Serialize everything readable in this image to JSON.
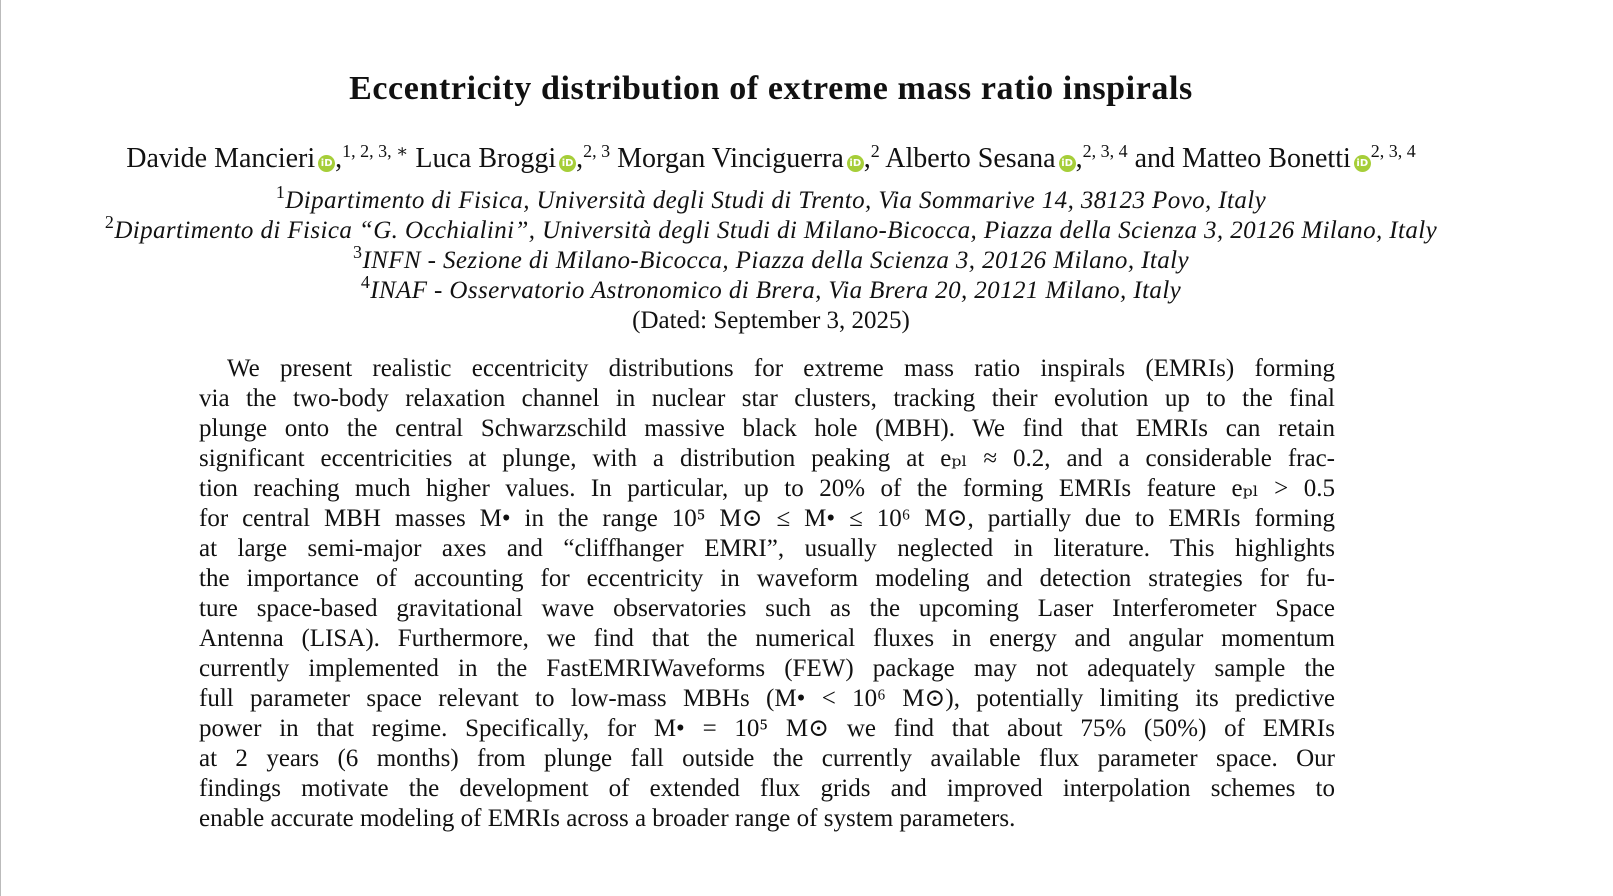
{
  "title": "Eccentricity distribution of extreme mass ratio inspirals",
  "authors": [
    {
      "name": "Davide Mancieri",
      "sep": ",",
      "affil": "1, 2, 3, ∗"
    },
    {
      "name": "Luca Broggi",
      "sep": ",",
      "affil": "2, 3"
    },
    {
      "name": "Morgan Vinciguerra",
      "sep": ",",
      "affil": "2"
    },
    {
      "name": "Alberto Sesana",
      "sep": ",",
      "affil": "2, 3, 4"
    },
    {
      "name": "Matteo Bonetti",
      "affil": "2, 3, 4"
    }
  ],
  "conjunction": "and",
  "affiliations": [
    {
      "mark": "1",
      "text": "Dipartimento di Fisica, Università degli Studi di Trento, Via Sommarive 14, 38123 Povo, Italy"
    },
    {
      "mark": "2",
      "text": "Dipartimento di Fisica “G. Occhialini”, Università degli Studi di Milano-Bicocca, Piazza della Scienza 3, 20126 Milano, Italy"
    },
    {
      "mark": "3",
      "text": "INFN - Sezione di Milano-Bicocca, Piazza della Scienza 3, 20126 Milano, Italy"
    },
    {
      "mark": "4",
      "text": "INAF - Osservatorio Astronomico di Brera, Via Brera 20, 20121 Milano, Italy"
    }
  ],
  "dated": "(Dated: September 3, 2025)",
  "abstract": [
    "We present realistic eccentricity distributions for extreme mass ratio inspirals (EMRIs) forming",
    "via the two-body relaxation channel in nuclear star clusters, tracking their evolution up to the final",
    "plunge onto the central Schwarzschild massive black hole (MBH). We find that EMRIs can retain",
    "significant eccentricities at plunge, with a distribution peaking at eₚₗ ≈ 0.2, and a considerable frac-",
    "tion reaching much higher values. In particular, up to 20% of the forming EMRIs feature eₚₗ > 0.5",
    "for central MBH masses M• in the range 10⁵ M⊙ ≤ M• ≤ 10⁶ M⊙, partially due to EMRIs forming",
    "at large semi-major axes and “cliffhanger EMRI”, usually neglected in literature. This highlights",
    "the importance of accounting for eccentricity in waveform modeling and detection strategies for fu-",
    "ture space-based gravitational wave observatories such as the upcoming Laser Interferometer Space",
    "Antenna (LISA). Furthermore, we find that the numerical fluxes in energy and angular momentum",
    "currently implemented in the FastEMRIWaveforms (FEW) package may not adequately sample the",
    "full parameter space relevant to low-mass MBHs (M• < 10⁶ M⊙), potentially limiting its predictive",
    "power in that regime. Specifically, for M• = 10⁵ M⊙ we find that about 75% (50%) of EMRIs",
    "at 2 years (6 months) from plunge fall outside the currently available flux parameter space. Our",
    "findings motivate the development of extended flux grids and improved interpolation schemes to",
    "enable accurate modeling of EMRIs across a broader range of system parameters."
  ]
}
